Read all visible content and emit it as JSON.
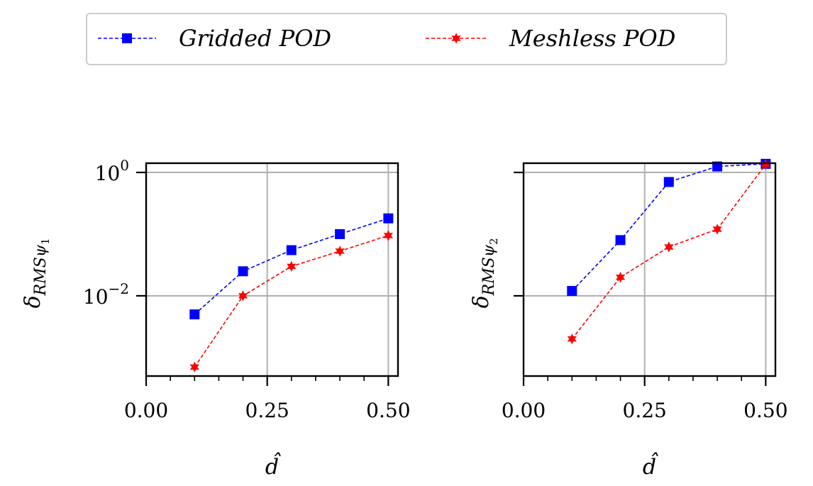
{
  "chart_data": [
    {
      "type": "line",
      "xlabel": "d̂",
      "ylabel": "δ_{RMS_{ψ1}}",
      "ylabel_main": "δ",
      "ylabel_sub": "RMSψ",
      "ylabel_subsub": "1",
      "xlim": [
        0.0,
        0.52
      ],
      "ylim_log10": [
        -3.3,
        0.15
      ],
      "yscale": "log",
      "grid": true,
      "x_ticks": [
        0.0,
        0.25,
        0.5
      ],
      "x_tick_labels": [
        "0.00",
        "0.25",
        "0.50"
      ],
      "y_ticks_log10": [
        0,
        -2
      ],
      "y_tick_labels": [
        {
          "base": "10",
          "exp": "0"
        },
        {
          "base": "10",
          "exp": "−2"
        }
      ],
      "x": [
        0.1,
        0.2,
        0.3,
        0.4,
        0.5
      ],
      "series": [
        {
          "name": "Gridded POD",
          "values": [
            0.005,
            0.025,
            0.055,
            0.1,
            0.18
          ]
        },
        {
          "name": "Meshless POD",
          "values": [
            0.0007,
            0.01,
            0.03,
            0.053,
            0.095
          ]
        }
      ]
    },
    {
      "type": "line",
      "xlabel": "d̂",
      "ylabel": "δ_{RMS_{ψ2}}",
      "ylabel_main": "δ",
      "ylabel_sub": "RMSψ",
      "ylabel_subsub": "2",
      "xlim": [
        0.0,
        0.52
      ],
      "ylim_log10": [
        -3.3,
        0.15
      ],
      "yscale": "log",
      "grid": true,
      "x_ticks": [
        0.0,
        0.25,
        0.5
      ],
      "x_tick_labels": [
        "0.00",
        "0.25",
        "0.50"
      ],
      "y_ticks_log10": [
        0,
        -2
      ],
      "y_tick_labels": [],
      "x": [
        0.1,
        0.2,
        0.3,
        0.4,
        0.5
      ],
      "series": [
        {
          "name": "Gridded POD",
          "values": [
            0.012,
            0.08,
            0.7,
            1.25,
            1.38
          ]
        },
        {
          "name": "Meshless POD",
          "values": [
            0.002,
            0.02,
            0.062,
            0.12,
            1.35
          ]
        }
      ]
    }
  ],
  "legend": {
    "placement": "top-center",
    "items": [
      {
        "label": "Gridded POD",
        "color": "#0000ff",
        "marker": "square"
      },
      {
        "label": "Meshless POD",
        "color": "#ff0000",
        "marker": "star"
      }
    ]
  },
  "colors": {
    "series": [
      "#0000ff",
      "#ff0000"
    ],
    "grid": "#b0b0b0",
    "legend_border": "#cccccc"
  }
}
